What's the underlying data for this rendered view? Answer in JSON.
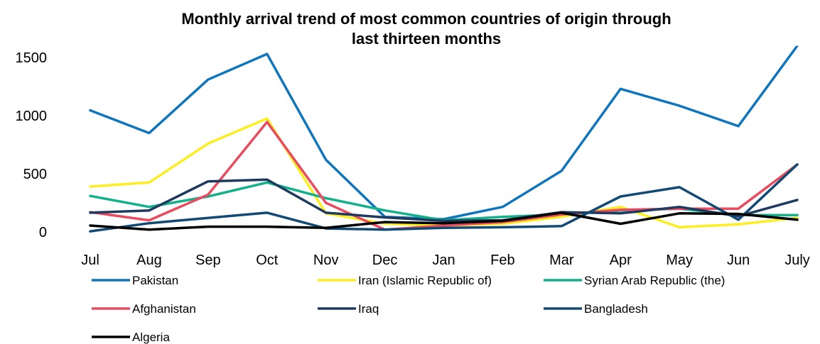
{
  "chart_data": {
    "type": "line",
    "title_lines": [
      "Monthly arrival trend of most common countries of origin through",
      "last thirteen months"
    ],
    "xlabel": "",
    "ylabel": "",
    "categories": [
      "Jul",
      "Aug",
      "Sep",
      "Oct",
      "Nov",
      "Dec",
      "Jan",
      "Feb",
      "Mar",
      "Apr",
      "May",
      "Jun",
      "July"
    ],
    "y_ticks": [
      "0",
      "500",
      "1000",
      "1500"
    ],
    "ylim": [
      0,
      1600
    ],
    "grid": false,
    "legend_position": "bottom",
    "series": [
      {
        "name": "Pakistan",
        "color": "#0f75bc",
        "values": [
          1045,
          850,
          1310,
          1530,
          620,
          130,
          110,
          215,
          525,
          1230,
          1085,
          910,
          1600
        ]
      },
      {
        "name": "Iran (Islamic Republic of)",
        "color": "#fcee21",
        "values": [
          390,
          425,
          760,
          975,
          160,
          70,
          55,
          70,
          130,
          215,
          40,
          65,
          120
        ]
      },
      {
        "name": "Syrian Arab Republic (the)",
        "color": "#14b08c",
        "values": [
          310,
          215,
          305,
          425,
          290,
          185,
          100,
          130,
          150,
          185,
          200,
          145,
          145
        ]
      },
      {
        "name": "Afghanistan",
        "color": "#e84c5e",
        "values": [
          170,
          100,
          320,
          945,
          250,
          20,
          55,
          85,
          150,
          190,
          200,
          200,
          580
        ]
      },
      {
        "name": "Iraq",
        "color": "#1f3a5f",
        "values": [
          165,
          185,
          435,
          450,
          165,
          125,
          95,
          100,
          170,
          160,
          215,
          135,
          275
        ]
      },
      {
        "name": "Bangladesh",
        "color": "#114a74",
        "values": [
          5,
          75,
          120,
          165,
          30,
          20,
          35,
          40,
          50,
          305,
          385,
          105,
          580
        ]
      },
      {
        "name": "Algeria",
        "color": "#000000",
        "values": [
          55,
          20,
          45,
          45,
          35,
          85,
          75,
          95,
          165,
          70,
          160,
          155,
          105
        ]
      }
    ]
  }
}
